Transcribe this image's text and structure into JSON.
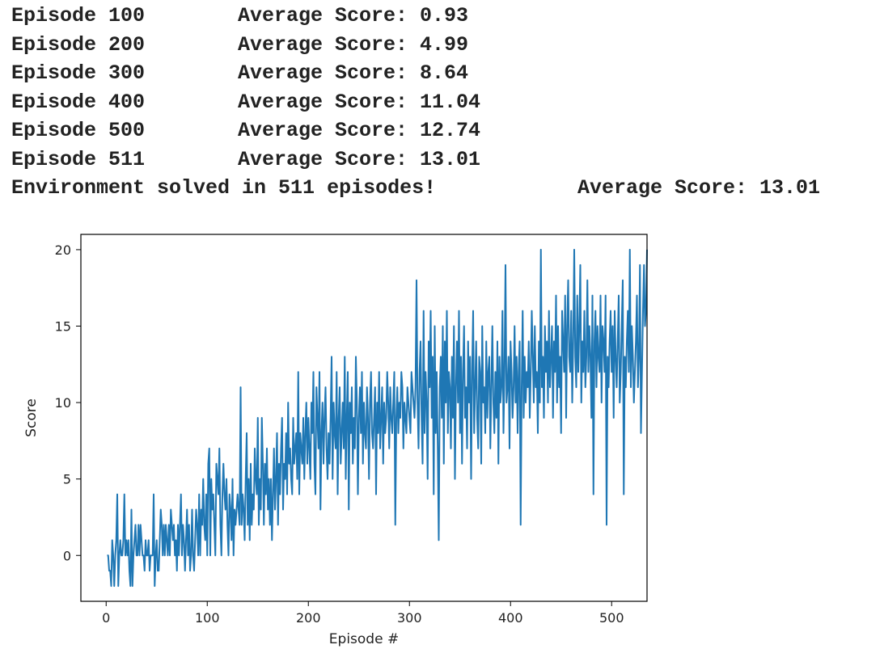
{
  "log": {
    "lines": [
      {
        "episode": "Episode 100",
        "average": "Average Score: 0.93"
      },
      {
        "episode": "Episode 200",
        "average": "Average Score: 4.99"
      },
      {
        "episode": "Episode 300",
        "average": "Average Score: 8.64"
      },
      {
        "episode": "Episode 400",
        "average": "Average Score: 11.04"
      },
      {
        "episode": "Episode 500",
        "average": "Average Score: 12.74"
      },
      {
        "episode": "Episode 511",
        "average": "Average Score: 13.01"
      }
    ],
    "solved": "Environment solved in 511 episodes!",
    "solved_average": "Average Score: 13.01"
  },
  "chart_data": {
    "type": "line",
    "xlabel": "Episode #",
    "ylabel": "Score",
    "xlim": [
      -25,
      535
    ],
    "ylim": [
      -3,
      21
    ],
    "xticks": [
      0,
      100,
      200,
      300,
      400,
      500
    ],
    "yticks": [
      0,
      5,
      10,
      15,
      20
    ],
    "grid": false,
    "series": [
      {
        "color": "#1f77b4",
        "x_start": 1,
        "values": [
          0,
          0,
          -1,
          -1,
          -2,
          1,
          0,
          -2,
          0,
          1,
          4,
          -2,
          0,
          1,
          0,
          0,
          1,
          4,
          0,
          1,
          0,
          1,
          -1,
          -2,
          3,
          -2,
          0,
          1,
          2,
          0,
          0,
          2,
          0,
          2,
          1,
          0,
          0,
          -1,
          1,
          0,
          0,
          1,
          -1,
          0,
          0,
          0,
          4,
          -2,
          0,
          1,
          -1,
          -1,
          1,
          3,
          2,
          0,
          2,
          0,
          2,
          1,
          0,
          2,
          0,
          3,
          2,
          1,
          2,
          0,
          1,
          -1,
          2,
          0,
          2,
          4,
          0,
          2,
          1,
          -1,
          1,
          3,
          0,
          2,
          -1,
          0,
          3,
          0,
          -1,
          1,
          3,
          2,
          0,
          4,
          0,
          3,
          2,
          5,
          2,
          1,
          4,
          0,
          6,
          7,
          0,
          5,
          3,
          4,
          2,
          0,
          6,
          5,
          4,
          7,
          2,
          0,
          4,
          6,
          4,
          3,
          5,
          2,
          0,
          4,
          3,
          1,
          5,
          0,
          3,
          2,
          3,
          4,
          3,
          2,
          11,
          2,
          4,
          3,
          1,
          5,
          8,
          2,
          5,
          1,
          6,
          2,
          4,
          3,
          7,
          5,
          4,
          9,
          2,
          5,
          3,
          9,
          6,
          2,
          6,
          4,
          7,
          3,
          5,
          2,
          5,
          1,
          4,
          7,
          3,
          5,
          8,
          2,
          6,
          4,
          7,
          9,
          3,
          6,
          5,
          8,
          4,
          10,
          6,
          7,
          5,
          4,
          9,
          6,
          7,
          8,
          5,
          12,
          4,
          8,
          7,
          6,
          9,
          5,
          8,
          10,
          6,
          9,
          7,
          5,
          10,
          8,
          12,
          6,
          4,
          11,
          9,
          7,
          12,
          3,
          8,
          10,
          6,
          9,
          11,
          7,
          5,
          8,
          6,
          9,
          13,
          5,
          10,
          8,
          7,
          12,
          4,
          9,
          11,
          6,
          8,
          10,
          7,
          13,
          5,
          9,
          12,
          3,
          10,
          8,
          11,
          6,
          9,
          7,
          13,
          10,
          4,
          9,
          11,
          8,
          12,
          6,
          10,
          8,
          7,
          11,
          9,
          5,
          10,
          12,
          8,
          7,
          9,
          11,
          4,
          10,
          8,
          12,
          7,
          9,
          11,
          6,
          10,
          8,
          9,
          12,
          10,
          7,
          11,
          9,
          8,
          10,
          12,
          2,
          9,
          11,
          8,
          10,
          9,
          12,
          11,
          7,
          10,
          9,
          8,
          11,
          10,
          9,
          8,
          12,
          11,
          10,
          9,
          11,
          18,
          10,
          7,
          12,
          14,
          9,
          6,
          16,
          8,
          12,
          10,
          5,
          14,
          11,
          16,
          9,
          13,
          4,
          15,
          8,
          12,
          7,
          1,
          11,
          13,
          9,
          15,
          6,
          14,
          10,
          16,
          8,
          12,
          11,
          7,
          13,
          9,
          15,
          5,
          11,
          14,
          10,
          16,
          8,
          13,
          6,
          12,
          15,
          9,
          11,
          7,
          14,
          10,
          13,
          5,
          12,
          16,
          8,
          11,
          14,
          9,
          7,
          13,
          12,
          6,
          15,
          10,
          11,
          8,
          14,
          9,
          12,
          13,
          7,
          11,
          15,
          10,
          8,
          12,
          9,
          14,
          6,
          13,
          10,
          11,
          16,
          8,
          12,
          19,
          10,
          11,
          13,
          7,
          14,
          12,
          9,
          11,
          15,
          10,
          13,
          8,
          12,
          14,
          2,
          11,
          16,
          9,
          13,
          10,
          12,
          11,
          14,
          9,
          12,
          16,
          13,
          10,
          15,
          11,
          12,
          8,
          14,
          10,
          20,
          11,
          13,
          9,
          15,
          12,
          14,
          10,
          16,
          11,
          13,
          15,
          9,
          14,
          12,
          17,
          10,
          15,
          11,
          13,
          8,
          16,
          14,
          12,
          17,
          9,
          15,
          18,
          13,
          12,
          16,
          10,
          14,
          20,
          13,
          11,
          17,
          12,
          15,
          19,
          10,
          14,
          12,
          16,
          11,
          13,
          18,
          12,
          15,
          13,
          9,
          17,
          4,
          14,
          16,
          11,
          15,
          13,
          12,
          17,
          10,
          15,
          14,
          12,
          17,
          2,
          13,
          11,
          14,
          16,
          12,
          15,
          9,
          16,
          13,
          11,
          14,
          17,
          10,
          12,
          15,
          18,
          4,
          13,
          11,
          14,
          16,
          12,
          20,
          11,
          15,
          13,
          10,
          12,
          14,
          17,
          11,
          13,
          19,
          8,
          12,
          16,
          19,
          15,
          16,
          20
        ]
      }
    ]
  }
}
